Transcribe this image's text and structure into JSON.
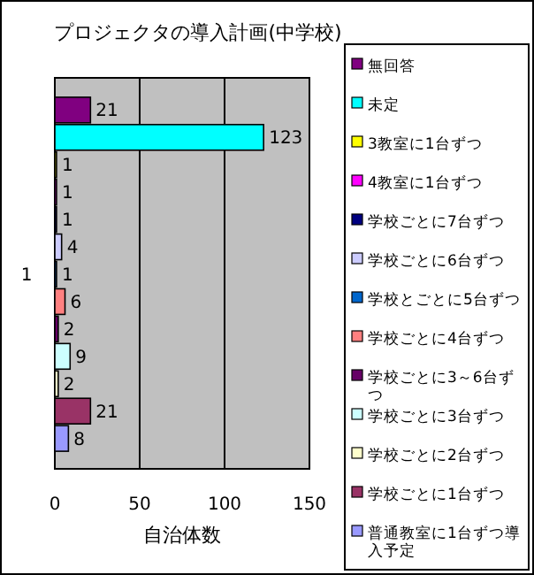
{
  "chart_data": {
    "type": "bar",
    "orientation": "horizontal",
    "title": "プロジェクタの導入計画(中学校)",
    "xlabel": "自治体数",
    "categories": [
      "1"
    ],
    "series": [
      {
        "name": "無回答",
        "color": "#800080",
        "values": [
          21
        ],
        "value_labels": [
          "21"
        ]
      },
      {
        "name": "未定",
        "color": "#00ffff",
        "values": [
          123
        ],
        "value_labels": [
          "123"
        ]
      },
      {
        "name": "3教室に1台ずつ",
        "color": "#ffff00",
        "values": [
          1
        ],
        "value_labels": [
          "1"
        ]
      },
      {
        "name": "4教室に1台ずつ",
        "color": "#ff00ff",
        "values": [
          1
        ],
        "value_labels": [
          "1"
        ]
      },
      {
        "name": "学校ごとに7台ずつ",
        "color": "#000080",
        "values": [
          1
        ],
        "value_labels": [
          "1"
        ]
      },
      {
        "name": "学校ごとに6台ずつ",
        "color": "#ccccff",
        "values": [
          4
        ],
        "value_labels": [
          "4"
        ]
      },
      {
        "name": "学校とごとに5台ずつ",
        "color": "#0066cc",
        "values": [
          1
        ],
        "value_labels": [
          "1"
        ]
      },
      {
        "name": "学校ごとに4台ずつ",
        "color": "#ff8080",
        "values": [
          6
        ],
        "value_labels": [
          "6"
        ]
      },
      {
        "name": "学校ごとに3～6台ずつ",
        "color": "#660066",
        "values": [
          2
        ],
        "value_labels": [
          "2"
        ]
      },
      {
        "name": "学校ごとに3台ずつ",
        "color": "#ccffff",
        "values": [
          9
        ],
        "value_labels": [
          "9"
        ]
      },
      {
        "name": "学校ごとに2台ずつ",
        "color": "#ffffcc",
        "values": [
          2
        ],
        "value_labels": [
          "2"
        ]
      },
      {
        "name": "学校ごとに1台ずつ",
        "color": "#993366",
        "values": [
          21
        ],
        "value_labels": [
          "21"
        ]
      },
      {
        "name": "普通教室に1台ずつ導入予定",
        "color": "#9999ff",
        "values": [
          8
        ],
        "value_labels": [
          "8"
        ]
      }
    ],
    "xlim": [
      0,
      150
    ],
    "xticks": [
      0,
      50,
      100,
      150
    ],
    "grid": "x",
    "legend": "right"
  }
}
